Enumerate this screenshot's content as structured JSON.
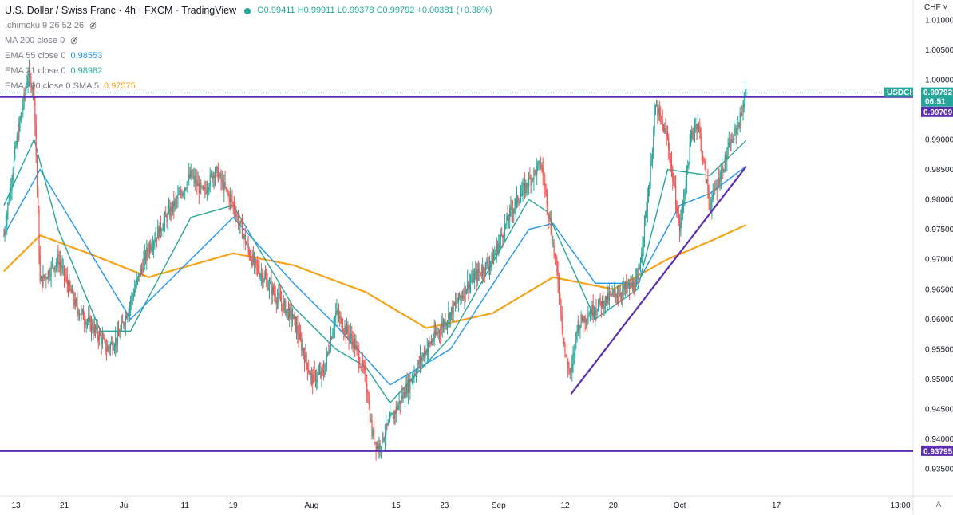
{
  "header": {
    "symbol_title": "U.S. Dollar / Swiss Franc · 4h · FXCM · TradingView",
    "ohlc": {
      "open": "O0.99411",
      "high": "H0.99911",
      "low": "L0.99378",
      "close": "C0.99792",
      "change": "+0.00381 (+0.38%)"
    }
  },
  "indicators": {
    "ichimoku": "Ichimoku 9 26 52 26",
    "ma200": "MA 200 close 0",
    "ema55_label": "EMA 55 close 0",
    "ema55_value": "0.98553",
    "ema21_label": "EMA 21 close 0",
    "ema21_value": "0.98982",
    "ema200_label": "EMA 200 close 0 SMA 5",
    "ema200_value": "0.97575"
  },
  "price_axis": {
    "currency_menu": "CHF ˅",
    "ticks": [
      "1.01000",
      "1.00500",
      "1.00000",
      "0.99500",
      "0.99000",
      "0.98500",
      "0.98000",
      "0.97500",
      "0.97000",
      "0.96500",
      "0.96000",
      "0.95500",
      "0.95000",
      "0.94500",
      "0.94000",
      "0.93500"
    ],
    "symbol_tag": "USDCHF",
    "last_price_tag": "0.99792",
    "countdown": "06:51",
    "resistance_tag": "0.99709",
    "support_tag": "0.93795"
  },
  "time_axis": {
    "labels": [
      "13",
      "21",
      "Jul",
      "11",
      "19",
      "Aug",
      "15",
      "23",
      "Sep",
      "12",
      "20",
      "Oct",
      "17",
      "13:00"
    ],
    "auto_scale_button": "A"
  },
  "colors": {
    "up": "#26a69a",
    "down": "#ef5350",
    "ema55": "#2196f3",
    "ema21": "#26a69a",
    "ema200": "#f7a21b",
    "levels": "#5b2db3"
  },
  "chart_data": {
    "type": "candlestick",
    "interval": "4h",
    "y_axis_range": [
      0.931,
      1.012
    ],
    "x_axis_dates": [
      "13",
      "21",
      "Jul",
      "11",
      "19",
      "Aug",
      "15",
      "23",
      "Sep",
      "12",
      "20",
      "Oct",
      "17"
    ],
    "price_path_anchors": [
      {
        "t": "Jun 11",
        "price": 0.974
      },
      {
        "t": "Jun 13",
        "price": 0.989
      },
      {
        "t": "Jun 15",
        "price": 1.001
      },
      {
        "t": "Jun 16",
        "price": 0.998
      },
      {
        "t": "Jun 17",
        "price": 0.966
      },
      {
        "t": "Jun 20",
        "price": 0.97
      },
      {
        "t": "Jun 23",
        "price": 0.962
      },
      {
        "t": "Jun 27",
        "price": 0.957
      },
      {
        "t": "Jun 28",
        "price": 0.955
      },
      {
        "t": "Jun 30",
        "price": 0.957
      },
      {
        "t": "Jul 2",
        "price": 0.963
      },
      {
        "t": "Jul 5",
        "price": 0.972
      },
      {
        "t": "Jul 8",
        "price": 0.977
      },
      {
        "t": "Jul 12",
        "price": 0.984
      },
      {
        "t": "Jul 14",
        "price": 0.981
      },
      {
        "t": "Jul 16",
        "price": 0.985
      },
      {
        "t": "Jul 19",
        "price": 0.979
      },
      {
        "t": "Jul 22",
        "price": 0.97
      },
      {
        "t": "Jul 26",
        "price": 0.964
      },
      {
        "t": "Jul 29",
        "price": 0.96
      },
      {
        "t": "Aug 1",
        "price": 0.95
      },
      {
        "t": "Aug 3",
        "price": 0.951
      },
      {
        "t": "Aug 5",
        "price": 0.961
      },
      {
        "t": "Aug 8",
        "price": 0.956
      },
      {
        "t": "Aug 10",
        "price": 0.95
      },
      {
        "t": "Aug 11",
        "price": 0.941
      },
      {
        "t": "Aug 12",
        "price": 0.9385
      },
      {
        "t": "Aug 14",
        "price": 0.943
      },
      {
        "t": "Aug 17",
        "price": 0.949
      },
      {
        "t": "Aug 20",
        "price": 0.955
      },
      {
        "t": "Aug 24",
        "price": 0.961
      },
      {
        "t": "Aug 27",
        "price": 0.966
      },
      {
        "t": "Aug 31",
        "price": 0.97
      },
      {
        "t": "Sep 3",
        "price": 0.978
      },
      {
        "t": "Sep 6",
        "price": 0.983
      },
      {
        "t": "Sep 8",
        "price": 0.986
      },
      {
        "t": "Sep 9",
        "price": 0.98
      },
      {
        "t": "Sep 11",
        "price": 0.965
      },
      {
        "t": "Sep 12",
        "price": 0.954
      },
      {
        "t": "Sep 13",
        "price": 0.9505
      },
      {
        "t": "Sep 14",
        "price": 0.959
      },
      {
        "t": "Sep 17",
        "price": 0.962
      },
      {
        "t": "Sep 20",
        "price": 0.964
      },
      {
        "t": "Sep 24",
        "price": 0.966
      },
      {
        "t": "Sep 26",
        "price": 0.983
      },
      {
        "t": "Sep 27",
        "price": 0.9955
      },
      {
        "t": "Sep 29",
        "price": 0.99
      },
      {
        "t": "Oct 1",
        "price": 0.975
      },
      {
        "t": "Oct 3",
        "price": 0.991
      },
      {
        "t": "Oct 4",
        "price": 0.993
      },
      {
        "t": "Oct 6",
        "price": 0.979
      },
      {
        "t": "Oct 9",
        "price": 0.988
      },
      {
        "t": "Oct 11",
        "price": 0.9935
      },
      {
        "t": "Oct 12",
        "price": 0.99792
      }
    ],
    "ema_21_anchors": [
      {
        "t": "Jun 11",
        "price": 0.979
      },
      {
        "t": "Jun 16",
        "price": 0.99
      },
      {
        "t": "Jun 20",
        "price": 0.975
      },
      {
        "t": "Jun 27",
        "price": 0.958
      },
      {
        "t": "Jul 2",
        "price": 0.958
      },
      {
        "t": "Jul 12",
        "price": 0.977
      },
      {
        "t": "Jul 19",
        "price": 0.979
      },
      {
        "t": "Jul 29",
        "price": 0.962
      },
      {
        "t": "Aug 5",
        "price": 0.955
      },
      {
        "t": "Aug 10",
        "price": 0.952
      },
      {
        "t": "Aug 14",
        "price": 0.946
      },
      {
        "t": "Aug 24",
        "price": 0.957
      },
      {
        "t": "Sep 6",
        "price": 0.98
      },
      {
        "t": "Sep 9",
        "price": 0.978
      },
      {
        "t": "Sep 17",
        "price": 0.96
      },
      {
        "t": "Sep 24",
        "price": 0.965
      },
      {
        "t": "Sep 29",
        "price": 0.985
      },
      {
        "t": "Oct 6",
        "price": 0.984
      },
      {
        "t": "Oct 12",
        "price": 0.98982
      }
    ],
    "ema_55_anchors": [
      {
        "t": "Jun 11",
        "price": 0.974
      },
      {
        "t": "Jun 17",
        "price": 0.985
      },
      {
        "t": "Jun 23",
        "price": 0.975
      },
      {
        "t": "Jul 2",
        "price": 0.96
      },
      {
        "t": "Jul 12",
        "price": 0.97
      },
      {
        "t": "Jul 19",
        "price": 0.977
      },
      {
        "t": "Jul 29",
        "price": 0.966
      },
      {
        "t": "Aug 5",
        "price": 0.959
      },
      {
        "t": "Aug 14",
        "price": 0.949
      },
      {
        "t": "Aug 24",
        "price": 0.955
      },
      {
        "t": "Sep 6",
        "price": 0.975
      },
      {
        "t": "Sep 10",
        "price": 0.976
      },
      {
        "t": "Sep 17",
        "price": 0.966
      },
      {
        "t": "Sep 24",
        "price": 0.966
      },
      {
        "t": "Oct 1",
        "price": 0.979
      },
      {
        "t": "Oct 6",
        "price": 0.981
      },
      {
        "t": "Oct 12",
        "price": 0.98553
      }
    ],
    "ema_200_anchors": [
      {
        "t": "Jun 11",
        "price": 0.968
      },
      {
        "t": "Jun 17",
        "price": 0.974
      },
      {
        "t": "Jun 25",
        "price": 0.971
      },
      {
        "t": "Jul 5",
        "price": 0.967
      },
      {
        "t": "Jul 19",
        "price": 0.971
      },
      {
        "t": "Jul 29",
        "price": 0.969
      },
      {
        "t": "Aug 10",
        "price": 0.9645
      },
      {
        "t": "Aug 20",
        "price": 0.9585
      },
      {
        "t": "Aug 31",
        "price": 0.961
      },
      {
        "t": "Sep 10",
        "price": 0.967
      },
      {
        "t": "Sep 20",
        "price": 0.965
      },
      {
        "t": "Sep 29",
        "price": 0.97
      },
      {
        "t": "Oct 6",
        "price": 0.973
      },
      {
        "t": "Oct 12",
        "price": 0.97575
      }
    ],
    "horizontal_levels": [
      0.99709,
      0.93795
    ],
    "trendline": [
      {
        "t": "Sep 13",
        "price": 0.9475
      },
      {
        "t": "Oct 12",
        "price": 0.9855
      }
    ]
  }
}
